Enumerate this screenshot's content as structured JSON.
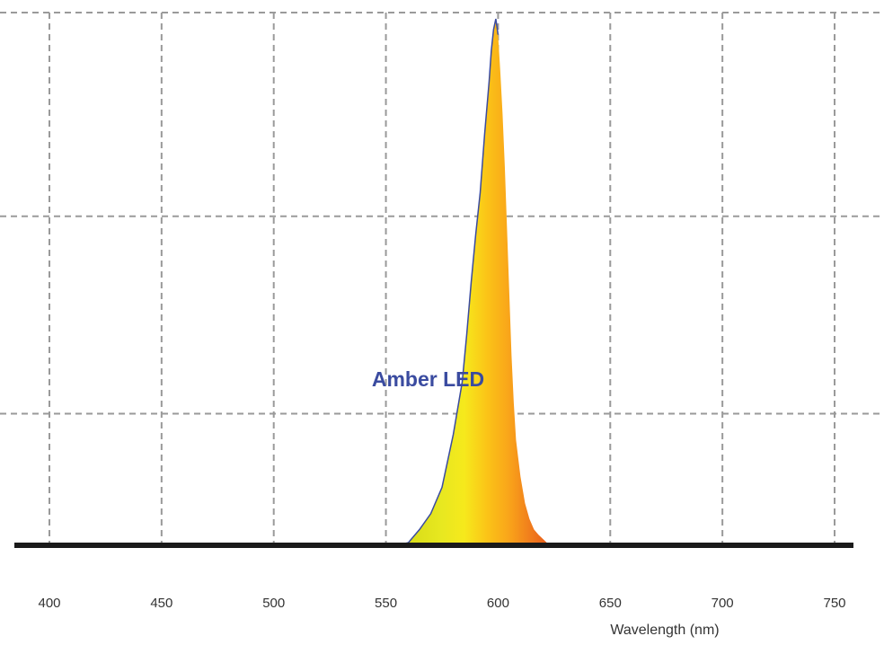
{
  "chart_data": {
    "type": "area",
    "title": "",
    "xlabel": "Wavelength (nm)",
    "ylabel": "",
    "xlim": [
      390,
      765
    ],
    "ylim": [
      0,
      1.0
    ],
    "xticks": [
      400,
      450,
      500,
      550,
      600,
      650,
      700,
      750
    ],
    "xtick_labels": [
      "400",
      "450",
      "500",
      "550",
      "600",
      "650",
      "700",
      "750"
    ],
    "yticks": [
      0.25,
      0.625,
      1.0
    ],
    "grid": true,
    "legend": "none",
    "annotations": [
      {
        "text": "Amber LED",
        "x": 572,
        "y": 0.33,
        "color": "#3a4ba0"
      }
    ],
    "series": [
      {
        "name": "Amber LED",
        "outline_color": "#3a4ba0",
        "fill_gradient": [
          {
            "wavelength": 560,
            "color": "#d8dc18"
          },
          {
            "wavelength": 575,
            "color": "#e8e820"
          },
          {
            "wavelength": 585,
            "color": "#f6e91c"
          },
          {
            "wavelength": 595,
            "color": "#fbc417"
          },
          {
            "wavelength": 605,
            "color": "#f9a41a"
          },
          {
            "wavelength": 615,
            "color": "#f07a1c"
          },
          {
            "wavelength": 623,
            "color": "#e85a1a"
          }
        ],
        "x": [
          555,
          560,
          565,
          570,
          575,
          580,
          584,
          586,
          588,
          590,
          592,
          594,
          596,
          597,
          598,
          599,
          600,
          601,
          602,
          603,
          604,
          605,
          606,
          607,
          608,
          610,
          612,
          614,
          616,
          618,
          620,
          622,
          624
        ],
        "y": [
          0.0,
          0.005,
          0.03,
          0.06,
          0.11,
          0.21,
          0.31,
          0.4,
          0.5,
          0.59,
          0.67,
          0.78,
          0.88,
          0.94,
          0.98,
          1.0,
          0.97,
          0.9,
          0.82,
          0.72,
          0.6,
          0.48,
          0.36,
          0.27,
          0.2,
          0.13,
          0.08,
          0.05,
          0.03,
          0.02,
          0.012,
          0.004,
          0.0
        ]
      }
    ]
  }
}
